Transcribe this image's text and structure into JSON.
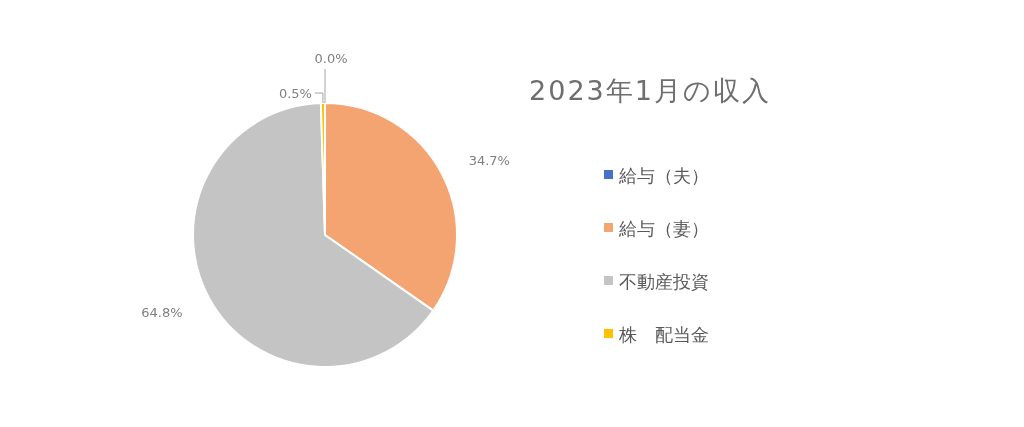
{
  "chart_data": {
    "type": "pie",
    "title": "2023年1月の収入",
    "categories": [
      "給与（夫）",
      "給与（妻）",
      "不動産投資",
      "株　配当金"
    ],
    "values": [
      0.0,
      34.7,
      64.8,
      0.5
    ],
    "colors": [
      "#4472c4",
      "#f4a471",
      "#c4c4c4",
      "#ffc000"
    ],
    "value_labels": [
      "0.0%",
      "34.7%",
      "64.8%",
      "0.5%"
    ],
    "legend": "right"
  }
}
